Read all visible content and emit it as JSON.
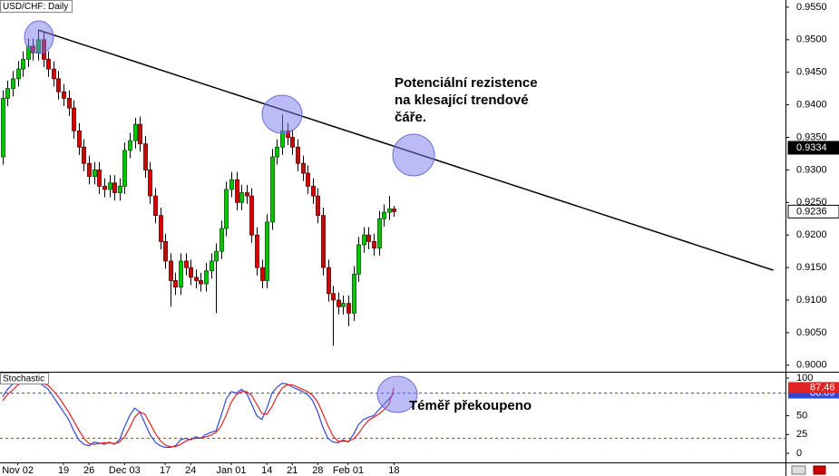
{
  "chart_data": [
    {
      "type": "candlestick",
      "title": "USD/CHF: Daily",
      "categories": [
        null,
        null,
        null,
        "Nov 02",
        null,
        null,
        null,
        null,
        null,
        null,
        null,
        null,
        "19",
        null,
        null,
        null,
        null,
        "26",
        null,
        null,
        null,
        null,
        null,
        null,
        "Dec 03",
        null,
        null,
        null,
        null,
        null,
        null,
        null,
        "17",
        null,
        null,
        null,
        null,
        "24",
        null,
        null,
        null,
        null,
        null,
        null,
        null,
        "Jan 01",
        null,
        null,
        null,
        null,
        null,
        null,
        "14",
        null,
        null,
        null,
        null,
        "21",
        null,
        null,
        null,
        null,
        "28",
        null,
        null,
        null,
        null,
        null,
        "Feb 01",
        null,
        null,
        null,
        null,
        null,
        null,
        null,
        null,
        "18"
      ],
      "open": [
        0.932,
        0.941,
        0.9425,
        0.944,
        0.9455,
        0.947,
        0.949,
        0.948,
        0.95,
        0.947,
        0.9455,
        0.944,
        0.942,
        0.941,
        0.9395,
        0.936,
        0.9335,
        0.931,
        0.929,
        0.93,
        0.9275,
        0.927,
        0.928,
        0.9265,
        0.9275,
        0.933,
        0.9345,
        0.937,
        0.934,
        0.93,
        0.926,
        0.923,
        0.919,
        0.916,
        0.913,
        0.912,
        0.916,
        0.915,
        0.9135,
        0.913,
        0.9125,
        0.9145,
        0.916,
        0.9175,
        0.921,
        0.927,
        0.9285,
        0.925,
        0.9265,
        0.926,
        0.92,
        0.915,
        0.913,
        0.922,
        0.932,
        0.9335,
        0.936,
        0.935,
        0.9335,
        0.931,
        0.9295,
        0.9275,
        0.926,
        0.923,
        0.915,
        0.911,
        0.91,
        0.909,
        0.9095,
        0.908,
        0.914,
        0.9185,
        0.92,
        0.919,
        0.918,
        0.9225,
        0.9235,
        0.924
      ],
      "high": [
        0.9422,
        0.9437,
        0.9452,
        0.9467,
        0.9482,
        0.9502,
        0.9502,
        0.9515,
        0.9512,
        0.9482,
        0.9467,
        0.9452,
        0.9432,
        0.9422,
        0.9407,
        0.9372,
        0.9347,
        0.9322,
        0.9312,
        0.9312,
        0.9287,
        0.9292,
        0.9292,
        0.9287,
        0.9342,
        0.9357,
        0.938,
        0.9382,
        0.9352,
        0.9312,
        0.9272,
        0.9242,
        0.9202,
        0.9172,
        0.9142,
        0.9172,
        0.9172,
        0.9162,
        0.9147,
        0.9142,
        0.9157,
        0.9172,
        0.9187,
        0.9222,
        0.9282,
        0.9297,
        0.9297,
        0.9277,
        0.9277,
        0.9272,
        0.9212,
        0.9162,
        0.9232,
        0.9332,
        0.9347,
        0.9385,
        0.9372,
        0.9362,
        0.9347,
        0.9322,
        0.9307,
        0.9287,
        0.9272,
        0.9242,
        0.9162,
        0.9122,
        0.9112,
        0.9107,
        0.9107,
        0.9152,
        0.9197,
        0.9212,
        0.9212,
        0.9202,
        0.9237,
        0.9247,
        0.926,
        0.9245
      ],
      "low": [
        0.9308,
        0.9398,
        0.9413,
        0.9428,
        0.9443,
        0.9458,
        0.9468,
        0.9468,
        0.9458,
        0.9443,
        0.9428,
        0.9408,
        0.9398,
        0.9383,
        0.9348,
        0.9323,
        0.9298,
        0.9278,
        0.9278,
        0.9263,
        0.9258,
        0.9258,
        0.9253,
        0.9253,
        0.9263,
        0.9318,
        0.9333,
        0.9328,
        0.9288,
        0.9248,
        0.9218,
        0.9178,
        0.9148,
        0.909,
        0.9108,
        0.9108,
        0.9138,
        0.9123,
        0.9118,
        0.9113,
        0.9113,
        0.9133,
        0.908,
        0.9163,
        0.9198,
        0.9258,
        0.9238,
        0.9238,
        0.9248,
        0.9188,
        0.9138,
        0.9118,
        0.9118,
        0.9208,
        0.9308,
        0.9323,
        0.9338,
        0.9323,
        0.9298,
        0.9283,
        0.9263,
        0.9248,
        0.9218,
        0.9138,
        0.9098,
        0.903,
        0.9078,
        0.9078,
        0.906,
        0.9068,
        0.9128,
        0.9173,
        0.9178,
        0.9168,
        0.9168,
        0.9213,
        0.9223,
        0.9228
      ],
      "close": [
        0.941,
        0.9425,
        0.944,
        0.9455,
        0.947,
        0.949,
        0.948,
        0.95,
        0.947,
        0.9455,
        0.944,
        0.942,
        0.941,
        0.9395,
        0.936,
        0.9335,
        0.931,
        0.929,
        0.93,
        0.9275,
        0.927,
        0.928,
        0.9265,
        0.9275,
        0.933,
        0.9345,
        0.937,
        0.934,
        0.93,
        0.926,
        0.923,
        0.919,
        0.916,
        0.913,
        0.912,
        0.916,
        0.915,
        0.9135,
        0.913,
        0.9125,
        0.9145,
        0.916,
        0.9175,
        0.921,
        0.927,
        0.9285,
        0.925,
        0.9265,
        0.926,
        0.92,
        0.915,
        0.913,
        0.922,
        0.932,
        0.9335,
        0.936,
        0.935,
        0.9335,
        0.931,
        0.9295,
        0.9275,
        0.926,
        0.923,
        0.915,
        0.911,
        0.91,
        0.909,
        0.9095,
        0.908,
        0.914,
        0.9185,
        0.92,
        0.919,
        0.918,
        0.9225,
        0.9235,
        0.924,
        0.9236
      ],
      "up_color": "#00c800",
      "down_color": "#d80000",
      "xlim": [
        -0.5,
        154
      ],
      "ylim": [
        0.899,
        0.9561
      ],
      "yticks": [
        {
          "value": 0.955,
          "label": "0.9550"
        },
        {
          "value": 0.95,
          "label": "0.9500"
        },
        {
          "value": 0.945,
          "label": "0.9450"
        },
        {
          "value": 0.94,
          "label": "0.9400"
        },
        {
          "value": 0.935,
          "label": "0.9350"
        },
        {
          "value": 0.93,
          "label": "0.9300"
        },
        {
          "value": 0.925,
          "label": "0.9250"
        },
        {
          "value": 0.92,
          "label": "0.9200"
        },
        {
          "value": 0.915,
          "label": "0.9150"
        },
        {
          "value": 0.91,
          "label": "0.9100"
        },
        {
          "value": 0.905,
          "label": "0.9050"
        },
        {
          "value": 0.9,
          "label": "0.9000"
        }
      ],
      "trendline": {
        "x": [
          7,
          151.6
        ],
        "y": [
          0.9515,
          0.9146
        ]
      },
      "price_tag": 0.9334,
      "annotation": [
        "Potenciální rezistence",
        "na klesající trendové",
        "čáře."
      ]
    },
    {
      "type": "line",
      "title": "Stochastic",
      "series": [
        {
          "color": "#3347d6",
          "values": [
            75,
            85,
            92,
            95,
            95,
            95,
            93,
            95,
            90,
            85,
            75,
            65,
            55,
            45,
            30,
            18,
            12,
            10,
            15,
            14,
            12,
            15,
            12,
            18,
            35,
            50,
            60,
            55,
            40,
            25,
            15,
            10,
            8,
            8,
            10,
            18,
            20,
            18,
            22,
            20,
            25,
            28,
            30,
            50,
            72,
            82,
            80,
            85,
            80,
            65,
            50,
            45,
            60,
            80,
            88,
            93,
            92,
            88,
            85,
            82,
            78,
            70,
            55,
            35,
            20,
            15,
            14,
            18,
            15,
            25,
            38,
            45,
            48,
            50,
            58,
            65,
            72,
            80.09
          ]
        },
        {
          "color": "#e02424",
          "values": [
            70,
            78,
            84,
            91,
            94,
            95,
            94,
            94,
            93,
            90,
            83,
            75,
            65,
            55,
            43,
            31,
            20,
            13,
            12,
            13,
            14,
            14,
            13,
            15,
            22,
            34,
            48,
            55,
            52,
            40,
            27,
            17,
            11,
            9,
            9,
            12,
            16,
            19,
            20,
            20,
            22,
            24,
            28,
            36,
            51,
            68,
            78,
            82,
            82,
            77,
            65,
            53,
            52,
            62,
            76,
            87,
            91,
            91,
            88,
            85,
            82,
            77,
            68,
            53,
            37,
            23,
            16,
            16,
            16,
            19,
            26,
            36,
            44,
            48,
            52,
            58,
            65,
            87.46
          ]
        }
      ],
      "levels": [
        {
          "value": 80,
          "color": "#3347d6"
        },
        {
          "value": 20,
          "color": "#e02424"
        }
      ],
      "xlim": [
        -0.5,
        154
      ],
      "ylim": [
        -12,
        108.4
      ],
      "yticks": [
        100,
        50,
        25,
        0
      ],
      "annotation": "Téměř překoupeno"
    }
  ]
}
